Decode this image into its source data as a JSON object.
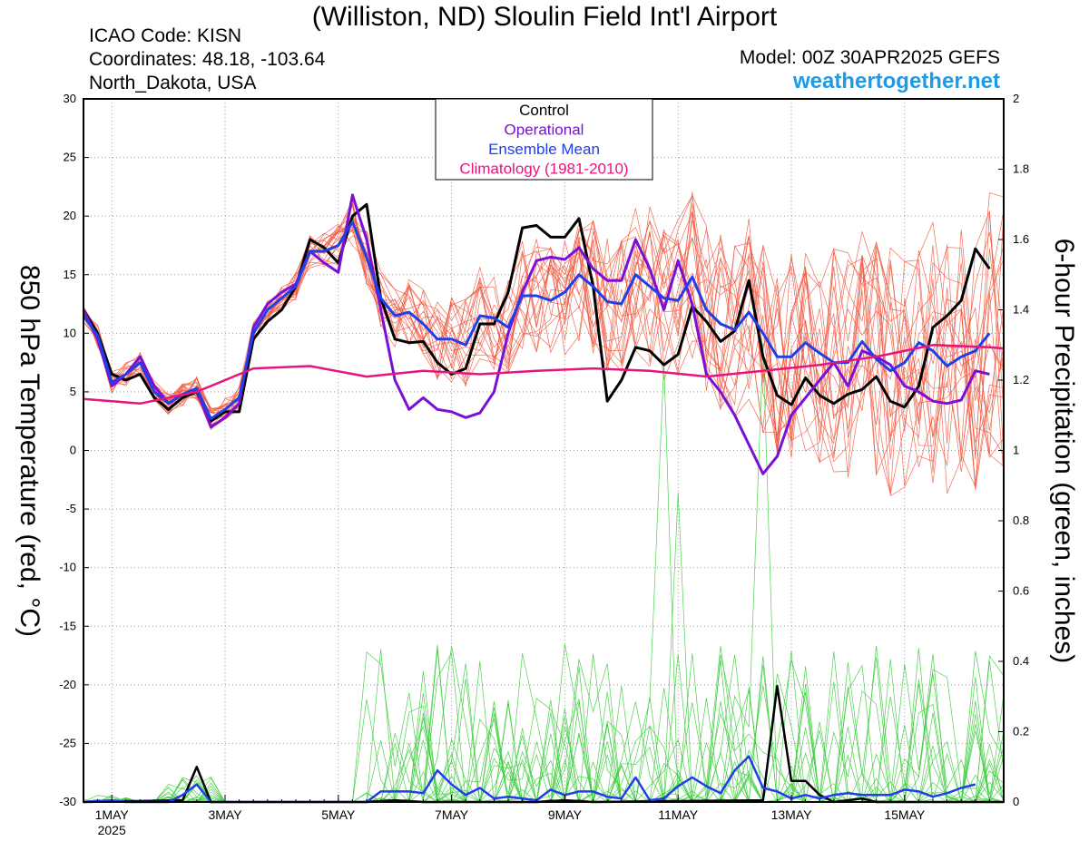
{
  "header": {
    "title": "(Williston, ND) Sloulin Field Int'l Airport",
    "icao": "ICAO Code: KISN",
    "coords": "Coordinates: 48.18, -103.64",
    "region": "North_Dakota, USA",
    "model": "Model: 00Z 30APR2025 GEFS",
    "site": "weathertogether.net"
  },
  "chart_data": {
    "type": "line",
    "ylabel_left": "850 hPa Temperature (red, °C)",
    "ylabel_right": "6-hour Precipitation (green, inches)",
    "ylim_left": [
      -30,
      30
    ],
    "ylim_right": [
      0,
      2
    ],
    "yticks_left": [
      30,
      25,
      20,
      15,
      10,
      5,
      0,
      -5,
      -10,
      -15,
      -20,
      -25,
      -30
    ],
    "yticks_right": [
      2,
      1.8,
      1.6,
      1.4,
      1.2,
      1,
      0.8,
      0.6,
      0.4,
      0.2,
      0
    ],
    "x_range_days": [
      -0.5,
      15.75
    ],
    "x_ticks": [
      {
        "day": 0,
        "label": "1MAY",
        "sub": "2025"
      },
      {
        "day": 2,
        "label": "3MAY",
        "sub": ""
      },
      {
        "day": 4,
        "label": "5MAY",
        "sub": ""
      },
      {
        "day": 6,
        "label": "7MAY",
        "sub": ""
      },
      {
        "day": 8,
        "label": "9MAY",
        "sub": ""
      },
      {
        "day": 10,
        "label": "11MAY",
        "sub": ""
      },
      {
        "day": 12,
        "label": "13MAY",
        "sub": ""
      },
      {
        "day": 14,
        "label": "15MAY",
        "sub": ""
      }
    ],
    "grid": true,
    "legend_position": "top-center",
    "colors": {
      "control": "#000000",
      "operational": "#7a0fd6",
      "ensemble_mean": "#1f3fe8",
      "climatology": "#e6147f",
      "members_temp": "#f0553c",
      "members_precip": "#3ccc3c"
    },
    "legend": [
      {
        "label": "Control",
        "color": "#000000"
      },
      {
        "label": "Operational",
        "color": "#7a0fd6"
      },
      {
        "label": "Ensemble Mean",
        "color": "#1f3fe8"
      },
      {
        "label": "Climatology (1981-2010)",
        "color": "#e6147f"
      }
    ],
    "series_temp": [
      {
        "name": "Control",
        "color": "#000000",
        "points": [
          [
            -0.5,
            12
          ],
          [
            -0.25,
            10
          ],
          [
            0,
            6.5
          ],
          [
            0.25,
            6
          ],
          [
            0.5,
            6.5
          ],
          [
            0.75,
            4.5
          ],
          [
            1,
            3.5
          ],
          [
            1.25,
            4.5
          ],
          [
            1.5,
            5
          ],
          [
            1.75,
            2.5
          ],
          [
            2,
            3.3
          ],
          [
            2.25,
            3.3
          ],
          [
            2.5,
            9.5
          ],
          [
            2.75,
            11
          ],
          [
            3,
            12
          ],
          [
            3.25,
            14
          ],
          [
            3.5,
            18
          ],
          [
            3.75,
            17.3
          ],
          [
            4,
            16
          ],
          [
            4.25,
            20
          ],
          [
            4.5,
            21
          ],
          [
            4.75,
            13
          ],
          [
            5,
            9.5
          ],
          [
            5.25,
            9.2
          ],
          [
            5.5,
            9.3
          ],
          [
            5.75,
            7.5
          ],
          [
            6,
            6.5
          ],
          [
            6.25,
            7
          ],
          [
            6.5,
            10.8
          ],
          [
            6.75,
            10.8
          ],
          [
            7,
            13.5
          ],
          [
            7.25,
            19
          ],
          [
            7.5,
            19.2
          ],
          [
            7.75,
            18.2
          ],
          [
            8,
            18.2
          ],
          [
            8.25,
            19.8
          ],
          [
            8.5,
            14
          ],
          [
            8.75,
            4.2
          ],
          [
            9,
            6
          ],
          [
            9.25,
            8.8
          ],
          [
            9.5,
            8.5
          ],
          [
            9.75,
            7.3
          ],
          [
            10,
            8.2
          ],
          [
            10.25,
            12.3
          ],
          [
            10.5,
            11
          ],
          [
            10.75,
            9.3
          ],
          [
            11,
            10.2
          ],
          [
            11.25,
            14.5
          ],
          [
            11.5,
            8
          ],
          [
            11.75,
            4.7
          ],
          [
            12,
            3.9
          ],
          [
            12.25,
            6.2
          ],
          [
            12.5,
            4.7
          ],
          [
            12.75,
            4
          ],
          [
            13,
            4.8
          ],
          [
            13.25,
            5.2
          ],
          [
            13.5,
            6.3
          ],
          [
            13.75,
            4.2
          ],
          [
            14,
            3.7
          ],
          [
            14.25,
            5.5
          ],
          [
            14.5,
            10.5
          ],
          [
            14.75,
            11.5
          ],
          [
            15,
            12.8
          ],
          [
            15.25,
            17.2
          ],
          [
            15.5,
            15.5
          ]
        ]
      },
      {
        "name": "Operational",
        "color": "#7a0fd6",
        "points": [
          [
            -0.5,
            12
          ],
          [
            -0.25,
            9.5
          ],
          [
            0,
            5.5
          ],
          [
            0.25,
            6.5
          ],
          [
            0.5,
            8
          ],
          [
            0.75,
            5.5
          ],
          [
            1,
            4
          ],
          [
            1.25,
            4.8
          ],
          [
            1.5,
            5.2
          ],
          [
            1.75,
            2
          ],
          [
            2,
            2.8
          ],
          [
            2.25,
            4
          ],
          [
            2.5,
            10.5
          ],
          [
            2.75,
            12.5
          ],
          [
            3,
            13.5
          ],
          [
            3.25,
            14.2
          ],
          [
            3.5,
            17
          ],
          [
            3.75,
            16
          ],
          [
            4,
            15.2
          ],
          [
            4.25,
            21.8
          ],
          [
            4.5,
            18
          ],
          [
            4.75,
            12
          ],
          [
            5,
            6
          ],
          [
            5.25,
            3.5
          ],
          [
            5.5,
            4.5
          ],
          [
            5.75,
            3.5
          ],
          [
            6,
            3.3
          ],
          [
            6.25,
            2.8
          ],
          [
            6.5,
            3.2
          ],
          [
            6.75,
            5
          ],
          [
            7,
            10
          ],
          [
            7.25,
            13.5
          ],
          [
            7.5,
            16.2
          ],
          [
            7.75,
            16.5
          ],
          [
            8,
            16.3
          ],
          [
            8.25,
            17.3
          ],
          [
            8.5,
            15.5
          ],
          [
            8.75,
            14.5
          ],
          [
            9,
            14.5
          ],
          [
            9.25,
            18
          ],
          [
            9.5,
            15.5
          ],
          [
            9.75,
            12
          ],
          [
            10,
            16.2
          ],
          [
            10.25,
            12.5
          ],
          [
            10.5,
            6.5
          ],
          [
            10.75,
            5
          ],
          [
            11,
            3
          ],
          [
            11.25,
            0.5
          ],
          [
            11.5,
            -2
          ],
          [
            11.75,
            -0.5
          ],
          [
            12,
            3
          ],
          [
            12.25,
            4.5
          ],
          [
            12.5,
            6
          ],
          [
            12.75,
            7.5
          ],
          [
            13,
            5.5
          ],
          [
            13.25,
            8.5
          ],
          [
            13.5,
            8
          ],
          [
            13.75,
            7.3
          ],
          [
            14,
            5.5
          ],
          [
            14.25,
            5
          ],
          [
            14.5,
            4.2
          ],
          [
            14.75,
            4
          ],
          [
            15,
            4.3
          ],
          [
            15.25,
            6.8
          ],
          [
            15.5,
            6.5
          ]
        ]
      },
      {
        "name": "Ensemble Mean",
        "color": "#1f3fe8",
        "points": [
          [
            -0.5,
            11.5
          ],
          [
            -0.25,
            9.8
          ],
          [
            0,
            5.8
          ],
          [
            0.25,
            6.5
          ],
          [
            0.5,
            7.5
          ],
          [
            0.75,
            5
          ],
          [
            1,
            4
          ],
          [
            1.25,
            4.8
          ],
          [
            1.5,
            5.3
          ],
          [
            1.75,
            2.7
          ],
          [
            2,
            3.5
          ],
          [
            2.25,
            4.5
          ],
          [
            2.5,
            10
          ],
          [
            2.75,
            12
          ],
          [
            3,
            13
          ],
          [
            3.25,
            14
          ],
          [
            3.5,
            17
          ],
          [
            3.75,
            17
          ],
          [
            4,
            17.5
          ],
          [
            4.25,
            19.5
          ],
          [
            4.5,
            16.5
          ],
          [
            4.75,
            13
          ],
          [
            5,
            11.5
          ],
          [
            5.25,
            11.8
          ],
          [
            5.5,
            10.8
          ],
          [
            5.75,
            9.5
          ],
          [
            6,
            9.5
          ],
          [
            6.25,
            9
          ],
          [
            6.5,
            11.5
          ],
          [
            6.75,
            11.3
          ],
          [
            7,
            10.5
          ],
          [
            7.25,
            13.2
          ],
          [
            7.5,
            13.2
          ],
          [
            7.75,
            12.8
          ],
          [
            8,
            13.5
          ],
          [
            8.25,
            15
          ],
          [
            8.5,
            14
          ],
          [
            8.75,
            12.7
          ],
          [
            9,
            12.5
          ],
          [
            9.25,
            15
          ],
          [
            9.5,
            14
          ],
          [
            9.75,
            13
          ],
          [
            10,
            12.8
          ],
          [
            10.25,
            14.8
          ],
          [
            10.5,
            12
          ],
          [
            10.75,
            10.8
          ],
          [
            11,
            10.3
          ],
          [
            11.25,
            11.8
          ],
          [
            11.5,
            10
          ],
          [
            11.75,
            8
          ],
          [
            12,
            8
          ],
          [
            12.25,
            9.2
          ],
          [
            12.5,
            8.3
          ],
          [
            12.75,
            7.5
          ],
          [
            13,
            7.5
          ],
          [
            13.25,
            9.3
          ],
          [
            13.5,
            7.8
          ],
          [
            13.75,
            6.8
          ],
          [
            14,
            7.5
          ],
          [
            14.25,
            9.2
          ],
          [
            14.5,
            8.5
          ],
          [
            14.75,
            7.2
          ],
          [
            15,
            8
          ],
          [
            15.25,
            8.5
          ],
          [
            15.5,
            10
          ]
        ]
      },
      {
        "name": "Climatology (1981-2010)",
        "color": "#e6147f",
        "points": [
          [
            -0.5,
            4.4
          ],
          [
            0.5,
            4
          ],
          [
            1.5,
            5
          ],
          [
            2.5,
            7
          ],
          [
            3.5,
            7.2
          ],
          [
            4.5,
            6.3
          ],
          [
            5.5,
            6.8
          ],
          [
            6.5,
            6.5
          ],
          [
            7.5,
            6.8
          ],
          [
            8.5,
            7
          ],
          [
            9.5,
            6.8
          ],
          [
            10.5,
            6.3
          ],
          [
            11.5,
            6.8
          ],
          [
            12.5,
            7.3
          ],
          [
            13.5,
            8
          ],
          [
            14.5,
            9
          ],
          [
            15.5,
            8.8
          ],
          [
            15.75,
            8.7
          ]
        ]
      }
    ],
    "series_precip": [
      {
        "name": "Control",
        "color": "#000000",
        "points": [
          [
            -0.5,
            0
          ],
          [
            1.25,
            0.005
          ],
          [
            1.5,
            0.1
          ],
          [
            1.75,
            0
          ],
          [
            4.5,
            0
          ],
          [
            5,
            0.005
          ],
          [
            5.5,
            0
          ],
          [
            7.5,
            0
          ],
          [
            8,
            0.005
          ],
          [
            8.5,
            0
          ],
          [
            11.5,
            0.005
          ],
          [
            11.75,
            0.33
          ],
          [
            12,
            0.06
          ],
          [
            12.25,
            0.06
          ],
          [
            12.5,
            0.02
          ],
          [
            12.75,
            0
          ],
          [
            13.25,
            0.01
          ],
          [
            13.5,
            0
          ],
          [
            15.75,
            0
          ]
        ]
      },
      {
        "name": "Ensemble Mean",
        "color": "#1f3fe8",
        "points": [
          [
            -0.5,
            0
          ],
          [
            0,
            0.005
          ],
          [
            0.25,
            0
          ],
          [
            1,
            0
          ],
          [
            1.25,
            0.02
          ],
          [
            1.5,
            0.05
          ],
          [
            1.75,
            0
          ],
          [
            4.5,
            0
          ],
          [
            4.75,
            0.03
          ],
          [
            5,
            0.03
          ],
          [
            5.25,
            0.03
          ],
          [
            5.5,
            0.025
          ],
          [
            5.75,
            0.09
          ],
          [
            6,
            0.05
          ],
          [
            6.25,
            0.02
          ],
          [
            6.5,
            0.04
          ],
          [
            6.75,
            0.01
          ],
          [
            7,
            0.015
          ],
          [
            7.25,
            0.01
          ],
          [
            7.5,
            0.005
          ],
          [
            7.75,
            0.035
          ],
          [
            8,
            0.02
          ],
          [
            8.25,
            0.03
          ],
          [
            8.5,
            0.03
          ],
          [
            8.75,
            0.015
          ],
          [
            9,
            0.01
          ],
          [
            9.25,
            0.07
          ],
          [
            9.5,
            0.005
          ],
          [
            9.75,
            0.01
          ],
          [
            10,
            0.045
          ],
          [
            10.25,
            0.07
          ],
          [
            10.5,
            0.045
          ],
          [
            10.75,
            0.025
          ],
          [
            11,
            0.09
          ],
          [
            11.25,
            0.13
          ],
          [
            11.5,
            0.04
          ],
          [
            11.75,
            0.03
          ],
          [
            12,
            0.01
          ],
          [
            12.25,
            0.02
          ],
          [
            12.5,
            0.01
          ],
          [
            12.75,
            0.02
          ],
          [
            13,
            0.025
          ],
          [
            13.25,
            0.02
          ],
          [
            13.5,
            0.02
          ],
          [
            13.75,
            0.02
          ],
          [
            14,
            0.035
          ],
          [
            14.25,
            0.03
          ],
          [
            14.5,
            0.015
          ],
          [
            14.75,
            0.025
          ],
          [
            15,
            0.04
          ],
          [
            15.25,
            0.05
          ]
        ]
      }
    ]
  }
}
